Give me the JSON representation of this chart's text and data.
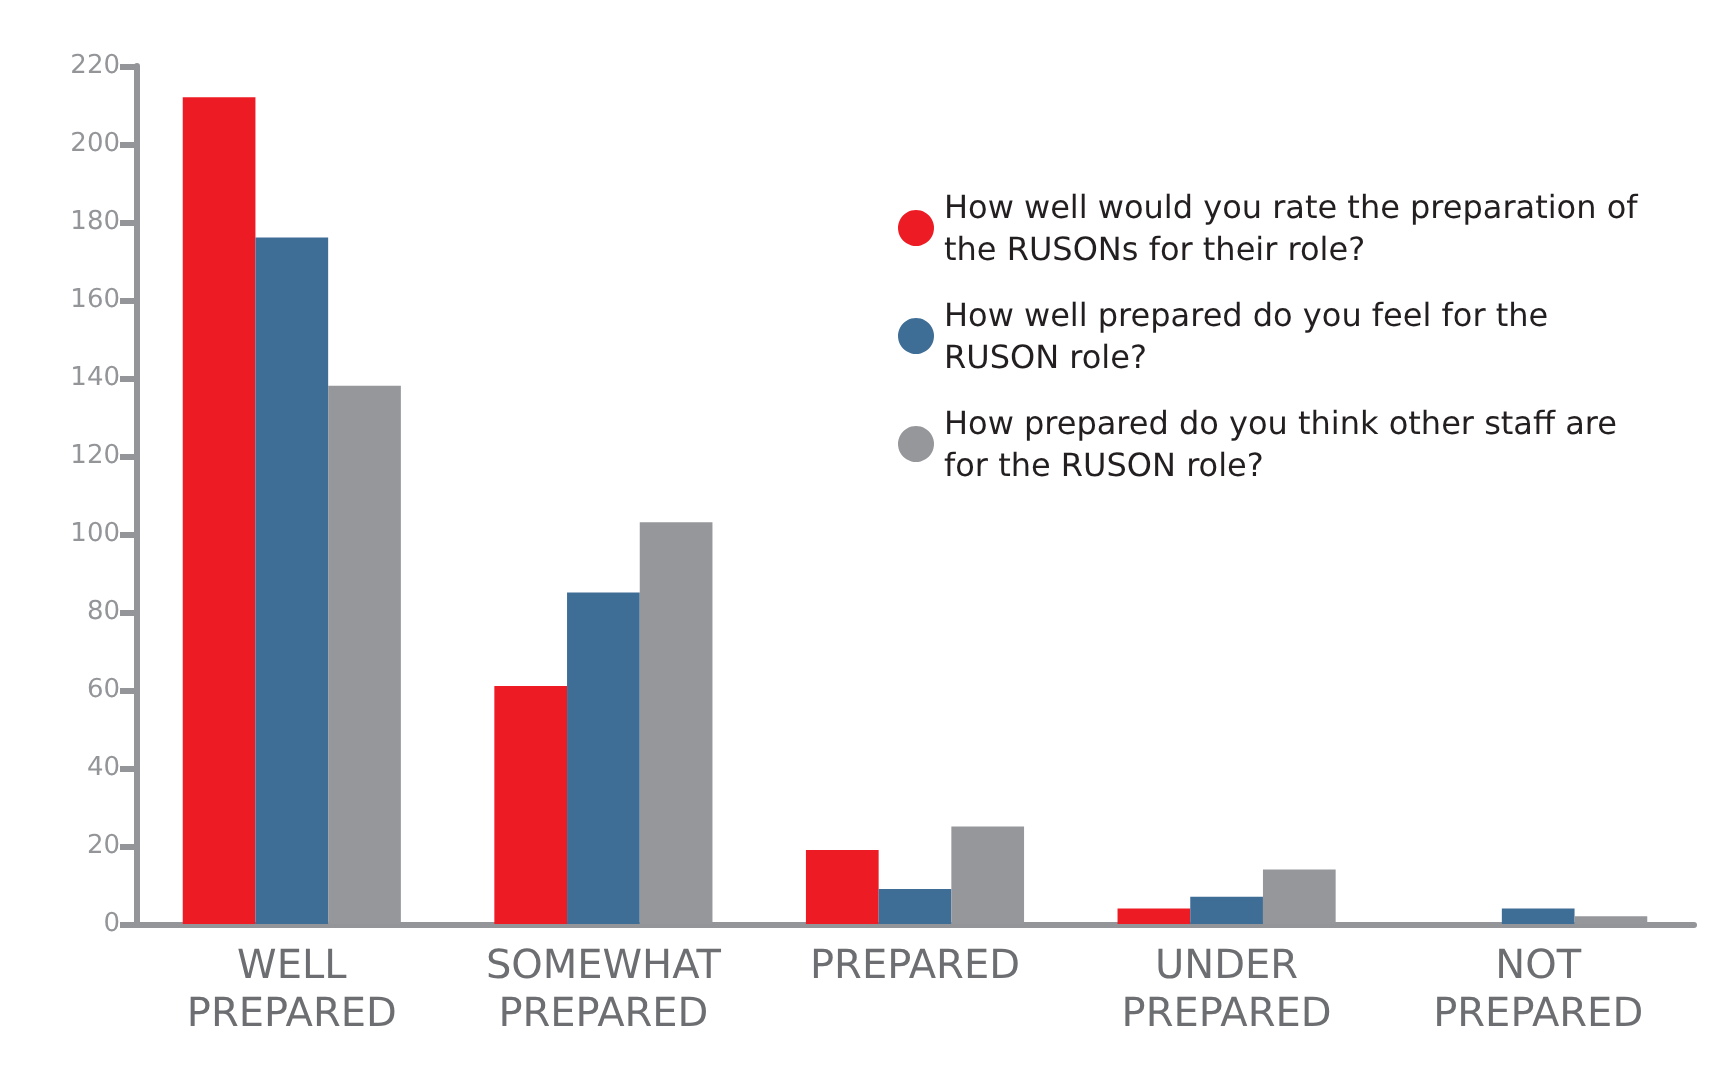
{
  "chart_data": {
    "type": "bar",
    "categories": [
      "WELL PREPARED",
      "SOMEWHAT PREPARED",
      "PREPARED",
      "UNDER PREPARED",
      "NOT PREPARED"
    ],
    "series": [
      {
        "name": "How well would you rate the preparation of the RUSONs for their role?",
        "color": "#ed1c24",
        "values": [
          212,
          61,
          19,
          4,
          0
        ]
      },
      {
        "name": "How well prepared do you feel for the RUSON role?",
        "color": "#3e6d95",
        "values": [
          176,
          85,
          9,
          7,
          4
        ]
      },
      {
        "name": "How prepared do you think other staff are for the RUSON role?",
        "color": "#96979b",
        "values": [
          138,
          103,
          25,
          14,
          2
        ]
      }
    ],
    "ylim": [
      0,
      220
    ],
    "yticks": [
      0,
      20,
      40,
      60,
      80,
      100,
      120,
      140,
      160,
      180,
      200,
      220
    ],
    "grid": false,
    "legend": "top right"
  }
}
